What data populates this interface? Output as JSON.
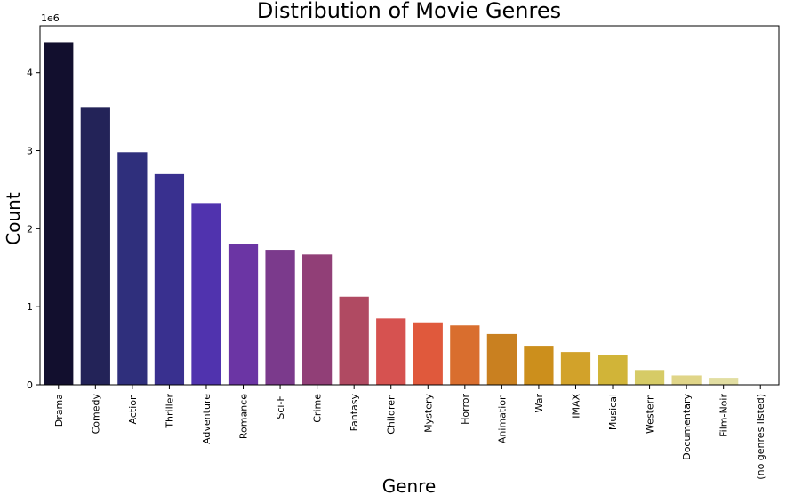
{
  "chart_data": {
    "type": "bar",
    "title": "Distribution of Movie Genres",
    "xlabel": "Genre",
    "ylabel": "Count",
    "y_offset_label": "1e6",
    "ylim": [
      0,
      4.6
    ],
    "yticks": [
      0,
      1,
      2,
      3,
      4
    ],
    "categories": [
      "Drama",
      "Comedy",
      "Action",
      "Thriller",
      "Adventure",
      "Romance",
      "Sci-Fi",
      "Crime",
      "Fantasy",
      "Children",
      "Mystery",
      "Horror",
      "Animation",
      "War",
      "IMAX",
      "Musical",
      "Western",
      "Documentary",
      "Film-Noir",
      "(no genres listed)"
    ],
    "values": [
      4.39,
      3.56,
      2.98,
      2.7,
      2.33,
      1.8,
      1.73,
      1.67,
      1.13,
      0.85,
      0.8,
      0.76,
      0.65,
      0.5,
      0.42,
      0.38,
      0.19,
      0.12,
      0.09,
      0.004
    ],
    "colors": [
      "#120f2e",
      "#232358",
      "#2f2f7c",
      "#39308f",
      "#5033ae",
      "#6b35a4",
      "#7b3a8c",
      "#913f77",
      "#b04a62",
      "#d65250",
      "#e0593c",
      "#d96e2e",
      "#c98020",
      "#cc8f1c",
      "#d2a22a",
      "#d1b438",
      "#d6cb66",
      "#e0d588",
      "#e2dea2",
      "#f0eed0"
    ],
    "grid": false
  }
}
